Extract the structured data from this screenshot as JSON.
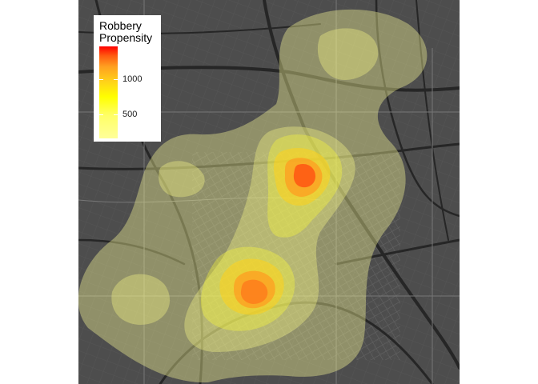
{
  "legend": {
    "title": "Robbery\nPropensity",
    "scale": [
      {
        "label": "1000",
        "value": 1000
      },
      {
        "label": "500",
        "value": 500
      }
    ]
  },
  "colors": {
    "map_background": "#4d4d4d",
    "roads": "#2b2b2b",
    "streets": "#6a6a6a",
    "low": "#ffff99",
    "mid": "#ffff00",
    "high": "#ff0000"
  }
}
